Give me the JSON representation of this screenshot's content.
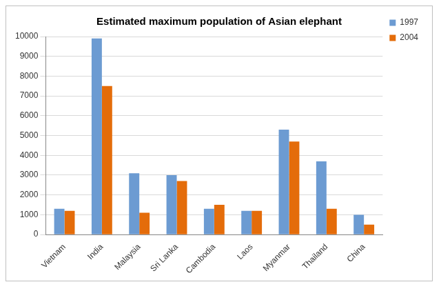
{
  "chart_data": {
    "type": "bar",
    "title": "Estimated maximum population of Asian elephant",
    "categories": [
      "Vietnam",
      "India",
      "Malaysia",
      "Sri Lanka",
      "Cambodia",
      "Laos",
      "Myanmar",
      "Thailand",
      "China"
    ],
    "series": [
      {
        "name": "1997",
        "color": "#6c9bd2",
        "values": [
          1300,
          9900,
          3100,
          3000,
          1300,
          1200,
          5300,
          3700,
          1000
        ]
      },
      {
        "name": "2004",
        "color": "#e46c0a",
        "values": [
          1200,
          7500,
          1100,
          2700,
          1500,
          1200,
          4700,
          1300,
          500
        ]
      }
    ],
    "ylim": [
      0,
      10000
    ],
    "yticks": [
      0,
      1000,
      2000,
      3000,
      4000,
      5000,
      6000,
      7000,
      8000,
      9000,
      10000
    ],
    "grid": true,
    "legend": "top-right"
  }
}
